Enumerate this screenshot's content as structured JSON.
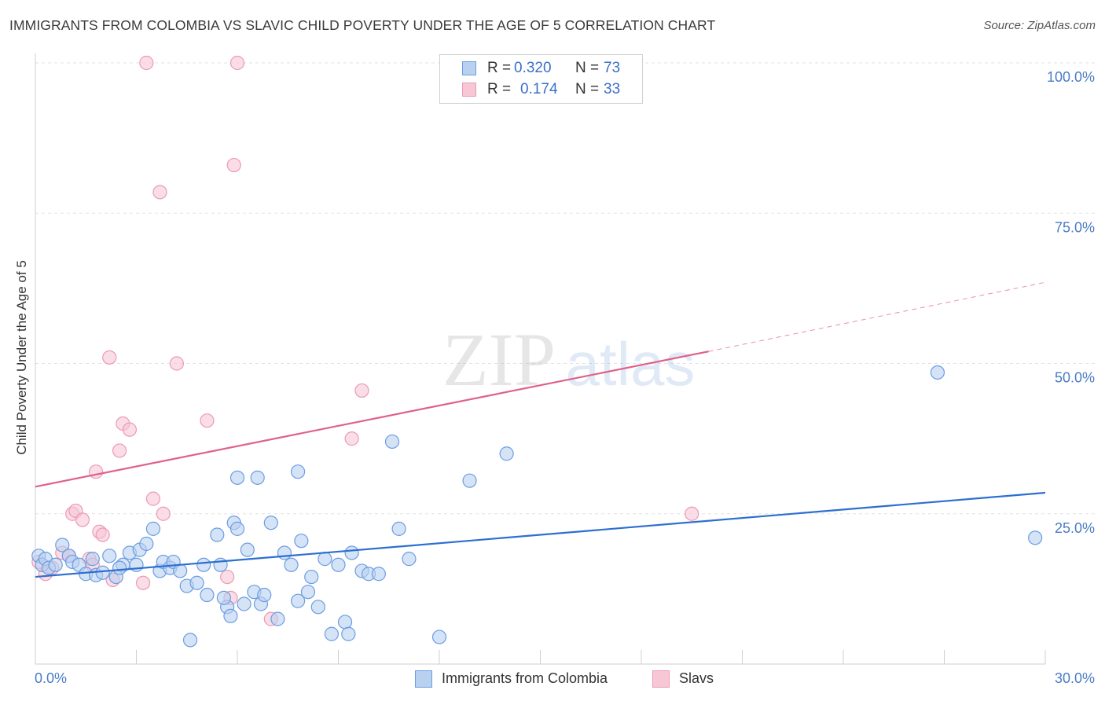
{
  "header": {
    "title": "IMMIGRANTS FROM COLOMBIA VS SLAVIC CHILD POVERTY UNDER THE AGE OF 5 CORRELATION CHART",
    "source": "Source: ZipAtlas.com"
  },
  "watermark": {
    "zip": "ZIP",
    "atlas": "atlas"
  },
  "legend": {
    "rows": [
      {
        "r_label": "R =",
        "r_value": "0.320",
        "n_label": "N =",
        "n_value": "73",
        "color": "#6b9de0"
      },
      {
        "r_label": "R =",
        "r_value": "0.174",
        "n_label": "N =",
        "n_value": "33",
        "color": "#f19bb5"
      }
    ]
  },
  "bottom_legend": {
    "series1": "Immigrants from Colombia",
    "series2": "Slavs"
  },
  "colors": {
    "blue_fill": "#b9d1f1",
    "blue_stroke": "#6b9de0",
    "blue_line": "#2d6fd0",
    "pink_fill": "#f7c7d6",
    "pink_stroke": "#ec9ab3",
    "pink_line": "#e0608a",
    "tick_text": "#4a7cc4",
    "grid": "#e2e2e2"
  },
  "chart_data": {
    "type": "scatter",
    "title": "IMMIGRANTS FROM COLOMBIA VS SLAVIC CHILD POVERTY UNDER THE AGE OF 5 CORRELATION CHART",
    "xlabel": "",
    "ylabel": "Child Poverty Under the Age of 5",
    "xlim": [
      0,
      30
    ],
    "ylim": [
      0,
      100
    ],
    "x_tick_labels": [
      "0.0%",
      "30.0%"
    ],
    "y_ticks": [
      25,
      50,
      75,
      100
    ],
    "y_tick_labels": [
      "25.0%",
      "50.0%",
      "75.0%",
      "100.0%"
    ],
    "grid": true,
    "legend_position": "top-center",
    "series": [
      {
        "name": "Immigrants from Colombia",
        "r": 0.32,
        "n": 73,
        "trend": {
          "x": [
            0,
            30
          ],
          "y": [
            14.5,
            28.5
          ]
        },
        "points": [
          [
            0.1,
            18.0
          ],
          [
            0.2,
            16.5
          ],
          [
            0.3,
            17.5
          ],
          [
            0.4,
            16.0
          ],
          [
            0.6,
            16.5
          ],
          [
            0.8,
            19.8
          ],
          [
            1.0,
            18.0
          ],
          [
            1.1,
            17.0
          ],
          [
            1.3,
            16.5
          ],
          [
            1.5,
            15.0
          ],
          [
            1.7,
            17.5
          ],
          [
            1.8,
            14.8
          ],
          [
            2.0,
            15.2
          ],
          [
            2.2,
            18.0
          ],
          [
            2.4,
            14.5
          ],
          [
            2.6,
            16.5
          ],
          [
            2.8,
            18.5
          ],
          [
            3.0,
            16.5
          ],
          [
            3.1,
            19.0
          ],
          [
            3.3,
            20.0
          ],
          [
            3.5,
            22.5
          ],
          [
            3.7,
            15.5
          ],
          [
            3.8,
            17.0
          ],
          [
            4.0,
            16.0
          ],
          [
            4.1,
            17.0
          ],
          [
            4.3,
            15.5
          ],
          [
            4.5,
            13.0
          ],
          [
            4.6,
            4.0
          ],
          [
            4.8,
            13.5
          ],
          [
            5.0,
            16.5
          ],
          [
            5.1,
            11.5
          ],
          [
            5.4,
            21.5
          ],
          [
            5.5,
            16.5
          ],
          [
            5.7,
            9.5
          ],
          [
            5.8,
            8.0
          ],
          [
            5.9,
            23.5
          ],
          [
            6.0,
            22.5
          ],
          [
            6.2,
            10.0
          ],
          [
            6.3,
            19.0
          ],
          [
            6.5,
            12.0
          ],
          [
            6.6,
            31.0
          ],
          [
            6.7,
            10.0
          ],
          [
            6.8,
            11.5
          ],
          [
            7.0,
            23.5
          ],
          [
            7.2,
            7.5
          ],
          [
            7.4,
            18.5
          ],
          [
            7.6,
            16.5
          ],
          [
            7.8,
            10.5
          ],
          [
            7.9,
            20.5
          ],
          [
            8.1,
            12.0
          ],
          [
            8.2,
            14.5
          ],
          [
            8.4,
            9.5
          ],
          [
            8.6,
            17.5
          ],
          [
            8.8,
            5.0
          ],
          [
            9.0,
            16.5
          ],
          [
            9.2,
            7.0
          ],
          [
            9.3,
            5.0
          ],
          [
            9.4,
            18.5
          ],
          [
            9.7,
            15.5
          ],
          [
            9.9,
            15.0
          ],
          [
            10.2,
            15.0
          ],
          [
            10.6,
            37.0
          ],
          [
            10.8,
            22.5
          ],
          [
            11.1,
            17.5
          ],
          [
            12.0,
            4.5
          ],
          [
            12.9,
            30.5
          ],
          [
            14.0,
            35.0
          ],
          [
            26.8,
            48.5
          ],
          [
            29.7,
            21.0
          ],
          [
            6.0,
            31.0
          ],
          [
            7.8,
            32.0
          ],
          [
            5.6,
            11.0
          ],
          [
            2.5,
            16.0
          ]
        ]
      },
      {
        "name": "Slavs",
        "r": 0.174,
        "n": 33,
        "trend": {
          "x": [
            0,
            20
          ],
          "y": [
            29.5,
            52.0
          ]
        },
        "trend_dashed": {
          "x": [
            20,
            30
          ],
          "y": [
            52.0,
            63.5
          ]
        },
        "points": [
          [
            0.1,
            17.0
          ],
          [
            0.3,
            15.0
          ],
          [
            0.5,
            16.0
          ],
          [
            0.8,
            18.5
          ],
          [
            1.0,
            18.0
          ],
          [
            1.1,
            25.0
          ],
          [
            1.2,
            25.5
          ],
          [
            1.4,
            24.0
          ],
          [
            1.6,
            17.5
          ],
          [
            1.8,
            32.0
          ],
          [
            1.9,
            22.0
          ],
          [
            2.0,
            21.5
          ],
          [
            2.2,
            51.0
          ],
          [
            2.3,
            14.0
          ],
          [
            2.5,
            35.5
          ],
          [
            2.6,
            40.0
          ],
          [
            2.8,
            39.0
          ],
          [
            3.2,
            13.5
          ],
          [
            3.3,
            100.0
          ],
          [
            3.5,
            27.5
          ],
          [
            3.7,
            78.5
          ],
          [
            3.8,
            25.0
          ],
          [
            4.2,
            50.0
          ],
          [
            5.1,
            40.5
          ],
          [
            5.7,
            14.5
          ],
          [
            5.8,
            11.0
          ],
          [
            5.9,
            83.0
          ],
          [
            6.0,
            100.0
          ],
          [
            7.0,
            7.5
          ],
          [
            9.4,
            37.5
          ],
          [
            9.7,
            45.5
          ],
          [
            19.5,
            25.0
          ],
          [
            1.7,
            16.5
          ]
        ]
      }
    ]
  }
}
